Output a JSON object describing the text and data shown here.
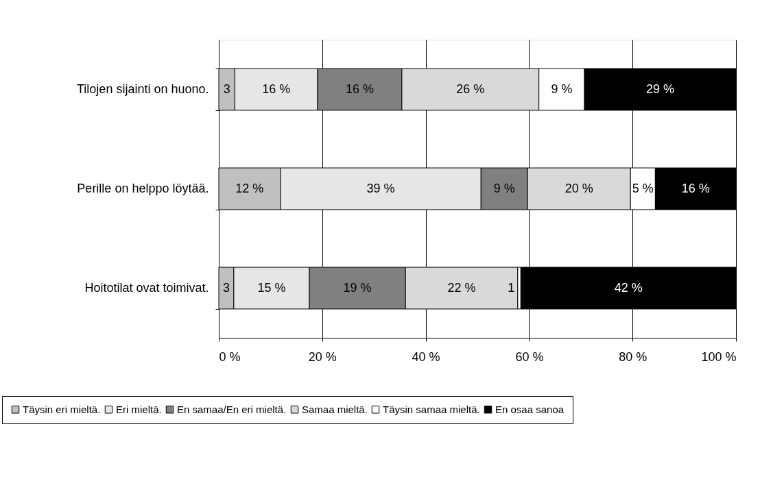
{
  "chart_data": {
    "type": "bar",
    "orientation": "horizontal",
    "stacked": true,
    "categories": [
      "Tilojen sijainti on huono.",
      "Perille on helppo löytää.",
      "Hoitotilat ovat toimivat."
    ],
    "series": [
      {
        "name": "Täysin eri mieltä.",
        "color": "#c0c0c0",
        "values": [
          3.1,
          11.9,
          2.9
        ],
        "value_labels": [
          "3",
          "12 %",
          "3"
        ]
      },
      {
        "name": "Eri mieltä.",
        "color": "#e6e6e6",
        "values": [
          16.0,
          38.8,
          14.6
        ],
        "value_labels": [
          "16 %",
          "39 %",
          "15 %"
        ]
      },
      {
        "name": "En samaa/En eri mieltä.",
        "color": "#808080",
        "values": [
          16.3,
          9.0,
          18.6
        ],
        "value_labels": [
          "16 %",
          "9 %",
          "19 %"
        ]
      },
      {
        "name": "Samaa mieltä.",
        "color": "#d9d9d9",
        "values": [
          26.5,
          19.9,
          21.7
        ],
        "value_labels": [
          "26 %",
          "20 %",
          "22 %"
        ]
      },
      {
        "name": "Täysin samaa mieltä.",
        "color": "#ffffff",
        "values": [
          8.8,
          4.8,
          0.6
        ],
        "value_labels": [
          "9 %",
          "5 %",
          "1"
        ]
      },
      {
        "name": "En osaa sanoa",
        "color": "#000000",
        "values": [
          29.3,
          15.6,
          41.6
        ],
        "value_labels": [
          "29 %",
          "16 %",
          "42 %"
        ]
      }
    ],
    "xlim": [
      0,
      100
    ],
    "xticks": [
      {
        "value": 0,
        "label": "0 %"
      },
      {
        "value": 20,
        "label": "20 %"
      },
      {
        "value": 40,
        "label": "40 %"
      },
      {
        "value": 60,
        "label": "60 %"
      },
      {
        "value": 80,
        "label": "80 %"
      },
      {
        "value": 100,
        "label": "100 %"
      }
    ],
    "grid": "x",
    "legend": "bottom"
  }
}
